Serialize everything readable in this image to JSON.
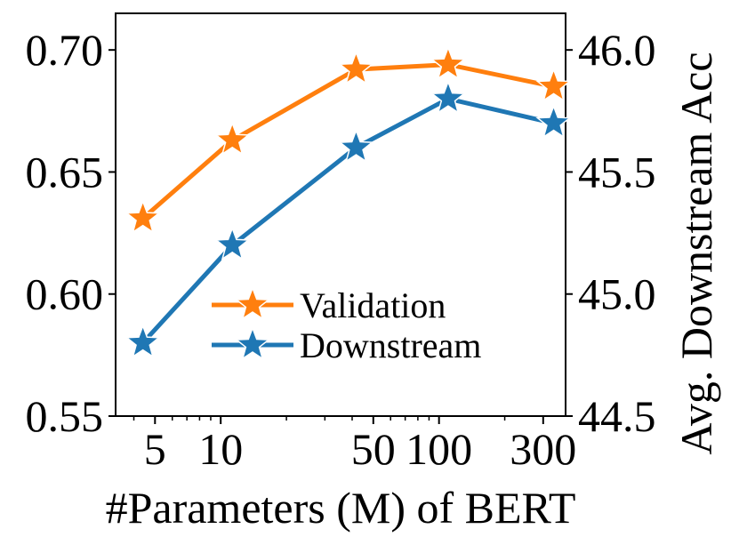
{
  "chart_data": {
    "type": "line",
    "xscale": "log",
    "xlabel": "#Parameters (M) of BERT",
    "ylabel_left": "",
    "ylabel_right": "Avg. Downstream Acc",
    "x_ticks": [
      {
        "value": 5,
        "label": "5"
      },
      {
        "value": 10,
        "label": "10"
      },
      {
        "value": 50,
        "label": "50"
      },
      {
        "value": 100,
        "label": "100"
      },
      {
        "value": 300,
        "label": "300"
      }
    ],
    "x_minor_ticks": [
      4,
      6,
      7,
      8,
      9,
      20,
      30,
      40,
      60,
      70,
      80,
      90,
      200
    ],
    "xlim": [
      3.3,
      380
    ],
    "left_axis": {
      "ylim": [
        0.55,
        0.715
      ],
      "ticks": [
        "0.55",
        "0.60",
        "0.65",
        "0.70"
      ]
    },
    "right_axis": {
      "ylim": [
        44.5,
        46.15
      ],
      "ticks": [
        "44.5",
        "45.0",
        "45.5",
        "46.0"
      ]
    },
    "series": [
      {
        "name": "Validation",
        "axis": "left",
        "color": "#ff7f0e",
        "marker": "star",
        "x": [
          4.4,
          11.3,
          41.7,
          110.1,
          335
        ],
        "y": [
          0.631,
          0.663,
          0.692,
          0.694,
          0.685
        ]
      },
      {
        "name": "Downstream",
        "axis": "right",
        "color": "#1f77b4",
        "marker": "star",
        "x": [
          4.4,
          11.3,
          41.7,
          110.1,
          335
        ],
        "y": [
          44.8,
          45.2,
          45.6,
          45.8,
          45.7
        ]
      }
    ],
    "legend": {
      "position": "lower-center",
      "entries": [
        "Validation",
        "Downstream"
      ]
    }
  }
}
